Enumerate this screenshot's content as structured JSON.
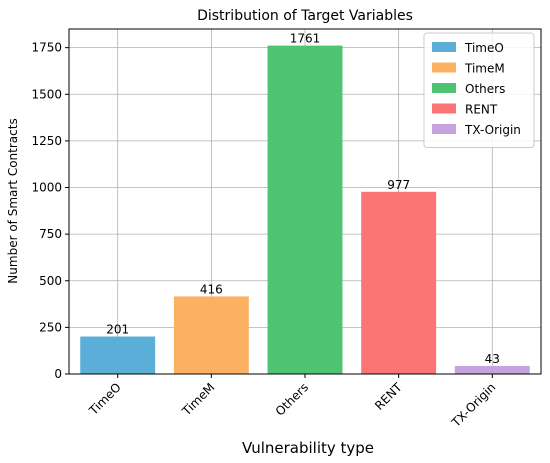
{
  "chart_data": {
    "type": "bar",
    "title": "Distribution of Target Variables",
    "xlabel": "Vulnerability type",
    "ylabel": "Number of Smart Contracts",
    "categories": [
      "TimeO",
      "TimeM",
      "Others",
      "RENT",
      "TX-Origin"
    ],
    "values": [
      201,
      416,
      1761,
      977,
      43
    ],
    "colors": [
      "#5aaed8",
      "#fcb062",
      "#4ec473",
      "#fb7476",
      "#c6a3dc"
    ],
    "ylim": [
      0,
      1850
    ],
    "yticks": [
      0,
      250,
      500,
      750,
      1000,
      1250,
      1500,
      1750
    ],
    "grid": true,
    "legend": {
      "placement": "top-right",
      "entries": [
        "TimeO",
        "TimeM",
        "Others",
        "RENT",
        "TX-Origin"
      ]
    }
  }
}
